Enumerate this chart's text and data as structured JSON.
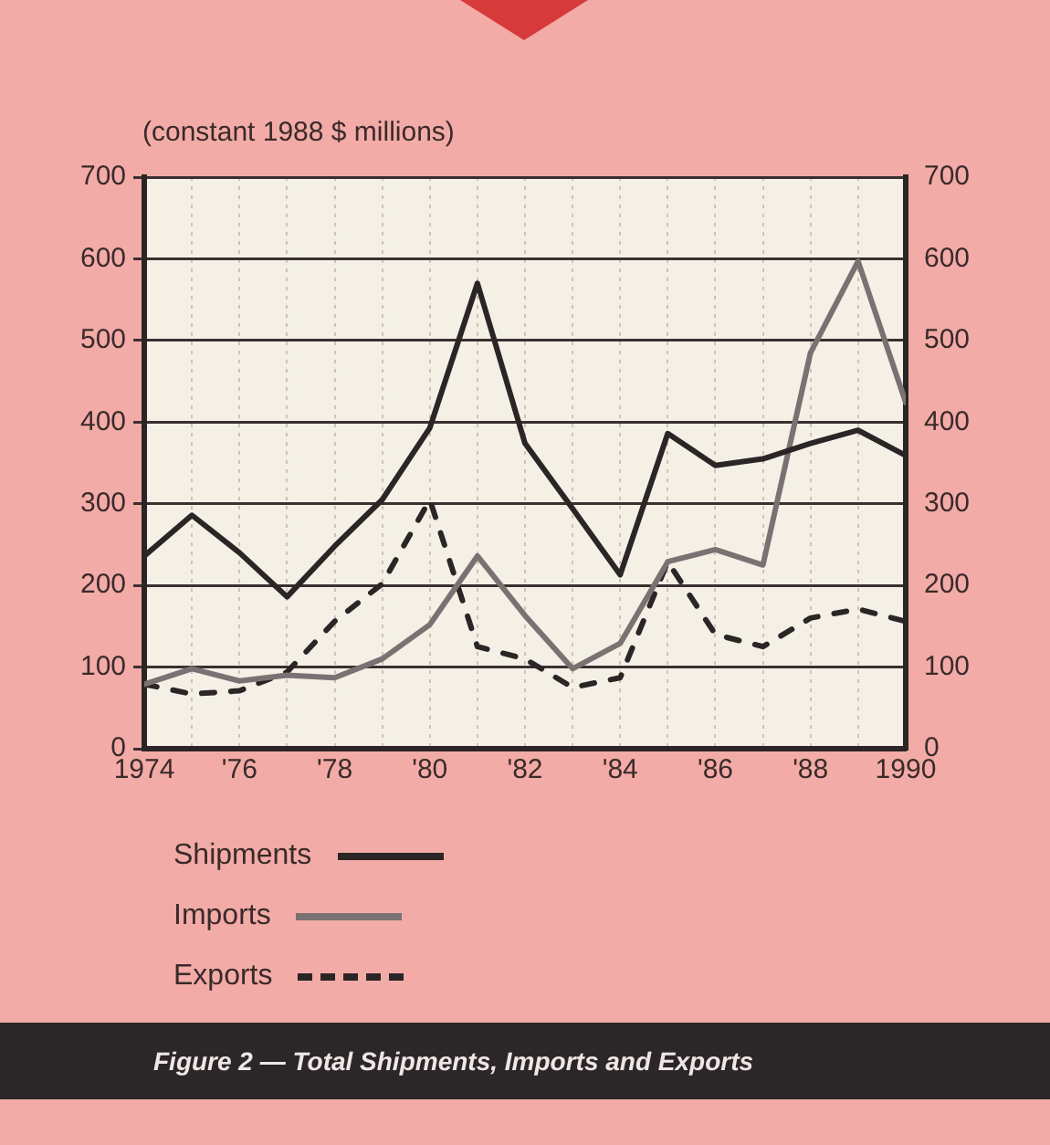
{
  "chart_data": {
    "type": "line",
    "title": "Figure 2 — Total Shipments, Imports and Exports",
    "ylabel": "(constant 1988 $ millions)",
    "x": [
      1974,
      1975,
      1976,
      1977,
      1978,
      1979,
      1980,
      1981,
      1982,
      1983,
      1984,
      1985,
      1986,
      1987,
      1988,
      1989,
      1990
    ],
    "xlim": [
      1974,
      1990
    ],
    "xticks": [
      1974,
      {
        "value": 1975,
        "label": null
      },
      {
        "value": 1976,
        "label": "'76"
      },
      {
        "value": 1977,
        "label": null
      },
      {
        "value": 1978,
        "label": "'78"
      },
      {
        "value": 1979,
        "label": null
      },
      {
        "value": 1980,
        "label": "'80"
      },
      {
        "value": 1981,
        "label": null
      },
      {
        "value": 1982,
        "label": "'82"
      },
      {
        "value": 1983,
        "label": null
      },
      {
        "value": 1984,
        "label": "'84"
      },
      {
        "value": 1985,
        "label": null
      },
      {
        "value": 1986,
        "label": "'86"
      },
      {
        "value": 1987,
        "label": null
      },
      {
        "value": 1988,
        "label": "'88"
      },
      {
        "value": 1989,
        "label": null
      },
      1990
    ],
    "ylim": [
      0,
      700
    ],
    "yticks": [
      0,
      100,
      200,
      300,
      400,
      500,
      600,
      700
    ],
    "y2lim": [
      0,
      700
    ],
    "y2ticks": [
      0,
      100,
      200,
      300,
      400,
      500,
      600,
      700
    ],
    "grid": true,
    "legend": "bottom",
    "marker": "none",
    "series": [
      {
        "name": "Shipments",
        "color": "#2b2526",
        "line_style": "solid",
        "values": [
          236,
          286,
          240,
          186,
          248,
          305,
          393,
          570,
          374,
          294,
          213,
          386,
          347,
          355,
          374,
          390,
          359
        ]
      },
      {
        "name": "Imports",
        "color": "#7a7272",
        "line_style": "solid",
        "values": [
          79,
          98,
          83,
          90,
          87,
          110,
          152,
          236,
          163,
          98,
          129,
          229,
          244,
          225,
          485,
          597,
          424
        ]
      },
      {
        "name": "Exports",
        "color": "#2b2526",
        "line_style": "dashed",
        "values": [
          79,
          67,
          71,
          94,
          156,
          202,
          305,
          125,
          110,
          75,
          87,
          229,
          140,
          125,
          160,
          171,
          156
        ]
      }
    ]
  }
}
